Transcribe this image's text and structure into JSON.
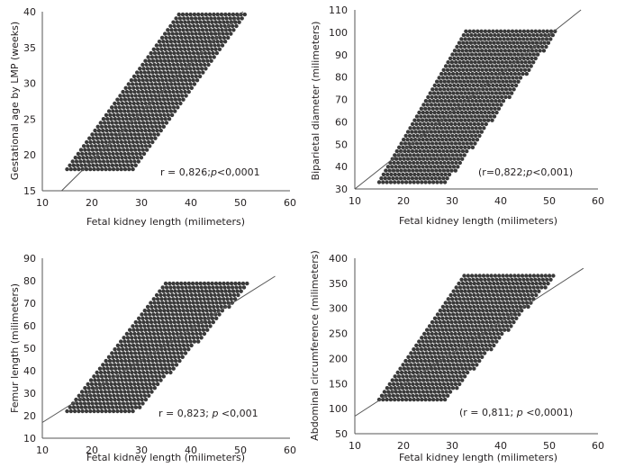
{
  "figure": {
    "marker_color": "#3a3a3a",
    "line_color": "#555555",
    "background": "#ffffff"
  },
  "chart_data": [
    {
      "type": "scatter",
      "id": "ga",
      "xlabel": "Fetal kidney length (milimeters)",
      "ylabel": "Gestational age by LMP (weeks)",
      "xlim": [
        10,
        60
      ],
      "ylim": [
        15,
        40
      ],
      "xticks": [
        10,
        20,
        30,
        40,
        50,
        60
      ],
      "yticks": [
        15,
        20,
        25,
        30,
        35,
        40
      ],
      "annotation": {
        "pre": "r = 0,826;",
        "p": "p",
        "post": "<0,0001"
      },
      "regression": {
        "x1": 13.9,
        "y1": 15,
        "x2": 50.5,
        "y2": 40
      },
      "band": {
        "x_min": 15,
        "x_max": 51.5,
        "y_min": 18,
        "y_max": 40,
        "lo_at_y_min": 15,
        "lo_at_y_max": 38,
        "hi_at_y_min": 28.5,
        "hi_at_y_max": 51.5
      },
      "grid": false,
      "legend": "none"
    },
    {
      "type": "scatter",
      "id": "bpd",
      "xlabel": "Fetal kidney length (milimeters)",
      "ylabel": "Biparietal diameter (milimeters)",
      "xlim": [
        10,
        60
      ],
      "ylim": [
        30,
        110
      ],
      "xticks": [
        10,
        20,
        30,
        40,
        50,
        60
      ],
      "yticks": [
        30,
        40,
        50,
        60,
        70,
        80,
        90,
        100,
        110
      ],
      "annotation": {
        "pre": "(r=0,822;",
        "p": "p",
        "post": "<0,001)"
      },
      "regression": {
        "x1": 10,
        "y1": 30,
        "x2": 56.5,
        "y2": 110
      },
      "band": {
        "x_min": 15,
        "x_max": 52,
        "y_min": 33,
        "y_max": 101,
        "lo_at_y_min": 15,
        "lo_at_y_max": 33,
        "hi_at_y_min": 29,
        "hi_at_y_max": 52
      },
      "grid": false,
      "legend": "none"
    },
    {
      "type": "scatter",
      "id": "fl",
      "xlabel": "Fetal kidney length (milimeters)",
      "ylabel": "Femur length (milimeters)",
      "xlim": [
        10,
        60
      ],
      "ylim": [
        10,
        90
      ],
      "xticks": [
        10,
        20,
        30,
        40,
        50,
        60
      ],
      "yticks": [
        10,
        20,
        30,
        40,
        50,
        60,
        70,
        80,
        90
      ],
      "annotation": {
        "pre": "r = 0,823; ",
        "p": "p",
        "post": " <0,001"
      },
      "regression": {
        "x1": 10,
        "y1": 17,
        "x2": 57,
        "y2": 82
      },
      "band": {
        "x_min": 15,
        "x_max": 52,
        "y_min": 22,
        "y_max": 79,
        "lo_at_y_min": 15,
        "lo_at_y_max": 35,
        "hi_at_y_min": 29,
        "hi_at_y_max": 52
      },
      "grid": false,
      "legend": "none"
    },
    {
      "type": "scatter",
      "id": "ac",
      "xlabel": "Fetal kidney length (milimeters)",
      "ylabel": "Abdominal circumference (milimeters)",
      "xlim": [
        10,
        60
      ],
      "ylim": [
        50,
        400
      ],
      "xticks": [
        10,
        20,
        30,
        40,
        50,
        60
      ],
      "yticks": [
        50,
        100,
        150,
        200,
        250,
        300,
        350,
        400
      ],
      "annotation": {
        "pre": "(r = 0,811; ",
        "p": "p",
        "post": " <0,0001)"
      },
      "regression": {
        "x1": 10,
        "y1": 85,
        "x2": 57,
        "y2": 380
      },
      "band": {
        "x_min": 15,
        "x_max": 52,
        "y_min": 118,
        "y_max": 372,
        "lo_at_y_min": 15,
        "lo_at_y_max": 33,
        "hi_at_y_min": 29,
        "hi_at_y_max": 52
      },
      "grid": false,
      "legend": "none"
    }
  ]
}
